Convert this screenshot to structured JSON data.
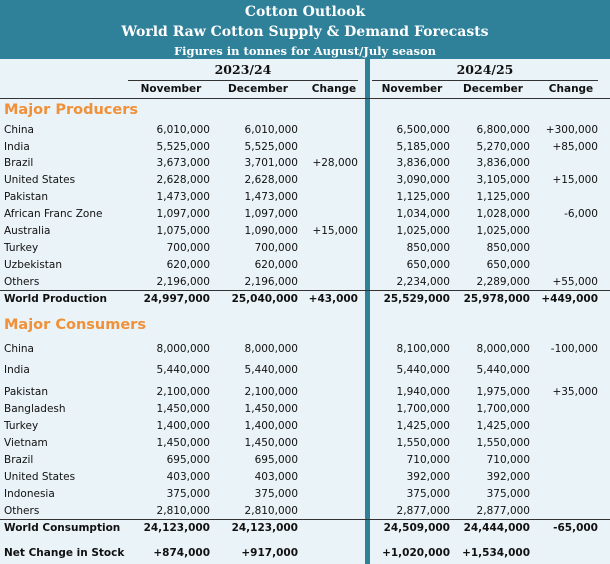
{
  "header": {
    "title": "Cotton Outlook",
    "subtitle": "World Raw Cotton Supply & Demand Forecasts",
    "note": "Figures in tonnes for August/July season"
  },
  "seasons": [
    "2023/24",
    "2024/25"
  ],
  "columns": [
    "November",
    "December",
    "Change",
    "November",
    "December",
    "Change"
  ],
  "producers": {
    "title": "Major Producers",
    "rows": [
      {
        "name": "China",
        "v": [
          "6,010,000",
          "6,010,000",
          "",
          "6,500,000",
          "6,800,000",
          "+300,000"
        ]
      },
      {
        "name": "India",
        "v": [
          "5,525,000",
          "5,525,000",
          "",
          "5,185,000",
          "5,270,000",
          "+85,000"
        ]
      },
      {
        "name": "Brazil",
        "v": [
          "3,673,000",
          "3,701,000",
          "+28,000",
          "3,836,000",
          "3,836,000",
          ""
        ]
      },
      {
        "name": "United States",
        "v": [
          "2,628,000",
          "2,628,000",
          "",
          "3,090,000",
          "3,105,000",
          "+15,000"
        ]
      },
      {
        "name": "Pakistan",
        "v": [
          "1,473,000",
          "1,473,000",
          "",
          "1,125,000",
          "1,125,000",
          ""
        ]
      },
      {
        "name": "African Franc Zone",
        "v": [
          "1,097,000",
          "1,097,000",
          "",
          "1,034,000",
          "1,028,000",
          "-6,000"
        ]
      },
      {
        "name": "Australia",
        "v": [
          "1,075,000",
          "1,090,000",
          "+15,000",
          "1,025,000",
          "1,025,000",
          ""
        ]
      },
      {
        "name": "Turkey",
        "v": [
          "700,000",
          "700,000",
          "",
          "850,000",
          "850,000",
          ""
        ]
      },
      {
        "name": "Uzbekistan",
        "v": [
          "620,000",
          "620,000",
          "",
          "650,000",
          "650,000",
          ""
        ]
      },
      {
        "name": "Others",
        "v": [
          "2,196,000",
          "2,196,000",
          "",
          "2,234,000",
          "2,289,000",
          "+55,000"
        ]
      }
    ],
    "total": {
      "name": "World Production",
      "v": [
        "24,997,000",
        "25,040,000",
        "+43,000",
        "25,529,000",
        "25,978,000",
        "+449,000"
      ]
    }
  },
  "consumers": {
    "title": "Major Consumers",
    "rows": [
      {
        "name": "China",
        "v": [
          "8,000,000",
          "8,000,000",
          "",
          "8,100,000",
          "8,000,000",
          "-100,000"
        ]
      },
      {
        "name": "India",
        "v": [
          "5,440,000",
          "5,440,000",
          "",
          "5,440,000",
          "5,440,000",
          ""
        ]
      },
      {
        "name": "Pakistan",
        "v": [
          "2,100,000",
          "2,100,000",
          "",
          "1,940,000",
          "1,975,000",
          "+35,000"
        ]
      },
      {
        "name": "Bangladesh",
        "v": [
          "1,450,000",
          "1,450,000",
          "",
          "1,700,000",
          "1,700,000",
          ""
        ]
      },
      {
        "name": "Turkey",
        "v": [
          "1,400,000",
          "1,400,000",
          "",
          "1,425,000",
          "1,425,000",
          ""
        ]
      },
      {
        "name": "Vietnam",
        "v": [
          "1,450,000",
          "1,450,000",
          "",
          "1,550,000",
          "1,550,000",
          ""
        ]
      },
      {
        "name": "Brazil",
        "v": [
          "695,000",
          "695,000",
          "",
          "710,000",
          "710,000",
          ""
        ]
      },
      {
        "name": "United States",
        "v": [
          "403,000",
          "403,000",
          "",
          "392,000",
          "392,000",
          ""
        ]
      },
      {
        "name": "Indonesia",
        "v": [
          "375,000",
          "375,000",
          "",
          "375,000",
          "375,000",
          ""
        ]
      },
      {
        "name": "Others",
        "v": [
          "2,810,000",
          "2,810,000",
          "",
          "2,877,000",
          "2,877,000",
          ""
        ]
      }
    ],
    "total": {
      "name": "World Consumption",
      "v": [
        "24,123,000",
        "24,123,000",
        "",
        "24,509,000",
        "24,444,000",
        "-65,000"
      ]
    }
  },
  "net": {
    "name": "Net Change in Stock",
    "v": [
      "+874,000",
      "+917,000",
      "",
      "+1,020,000",
      "+1,534,000",
      ""
    ]
  }
}
